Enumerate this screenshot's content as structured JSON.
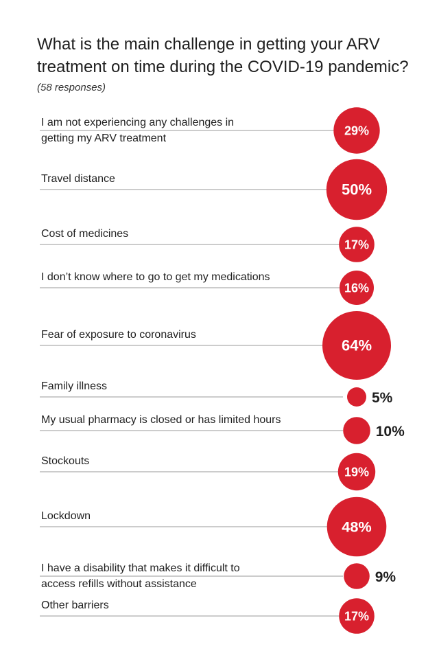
{
  "header": {
    "title": "What is the main challenge in getting your ARV treatment on time during the COVID-19 pandemic?",
    "responses": "(58 responses)"
  },
  "colors": {
    "accent": "#d8202e",
    "line": "#9a9a9a",
    "text": "#1f1f1f"
  },
  "chart_data": {
    "type": "bubble-bar",
    "title": "What is the main challenge in getting your ARV treatment on time during the COVID-19 pandemic?",
    "subtitle": "(58 responses)",
    "unit": "%",
    "categories": [
      [
        "I am not experiencing any challenges in",
        "getting my ARV treatment"
      ],
      [
        "Travel distance"
      ],
      [
        "Cost of medicines"
      ],
      [
        "I don’t know where to go to get my medications"
      ],
      [
        "Fear of exposure to coronavirus"
      ],
      [
        "Family illness"
      ],
      [
        "My usual pharmacy is closed or has limited hours"
      ],
      [
        "Stockouts"
      ],
      [
        "Lockdown"
      ],
      [
        "I have a disability that makes it difficult to",
        "access refills without assistance"
      ],
      [
        "Other barriers"
      ]
    ],
    "values": [
      29,
      50,
      17,
      16,
      64,
      5,
      10,
      19,
      48,
      9,
      17
    ],
    "labels": [
      "29%",
      "50%",
      "17%",
      "16%",
      "64%",
      "5%",
      "10%",
      "19%",
      "48%",
      "9%",
      "17%"
    ]
  }
}
